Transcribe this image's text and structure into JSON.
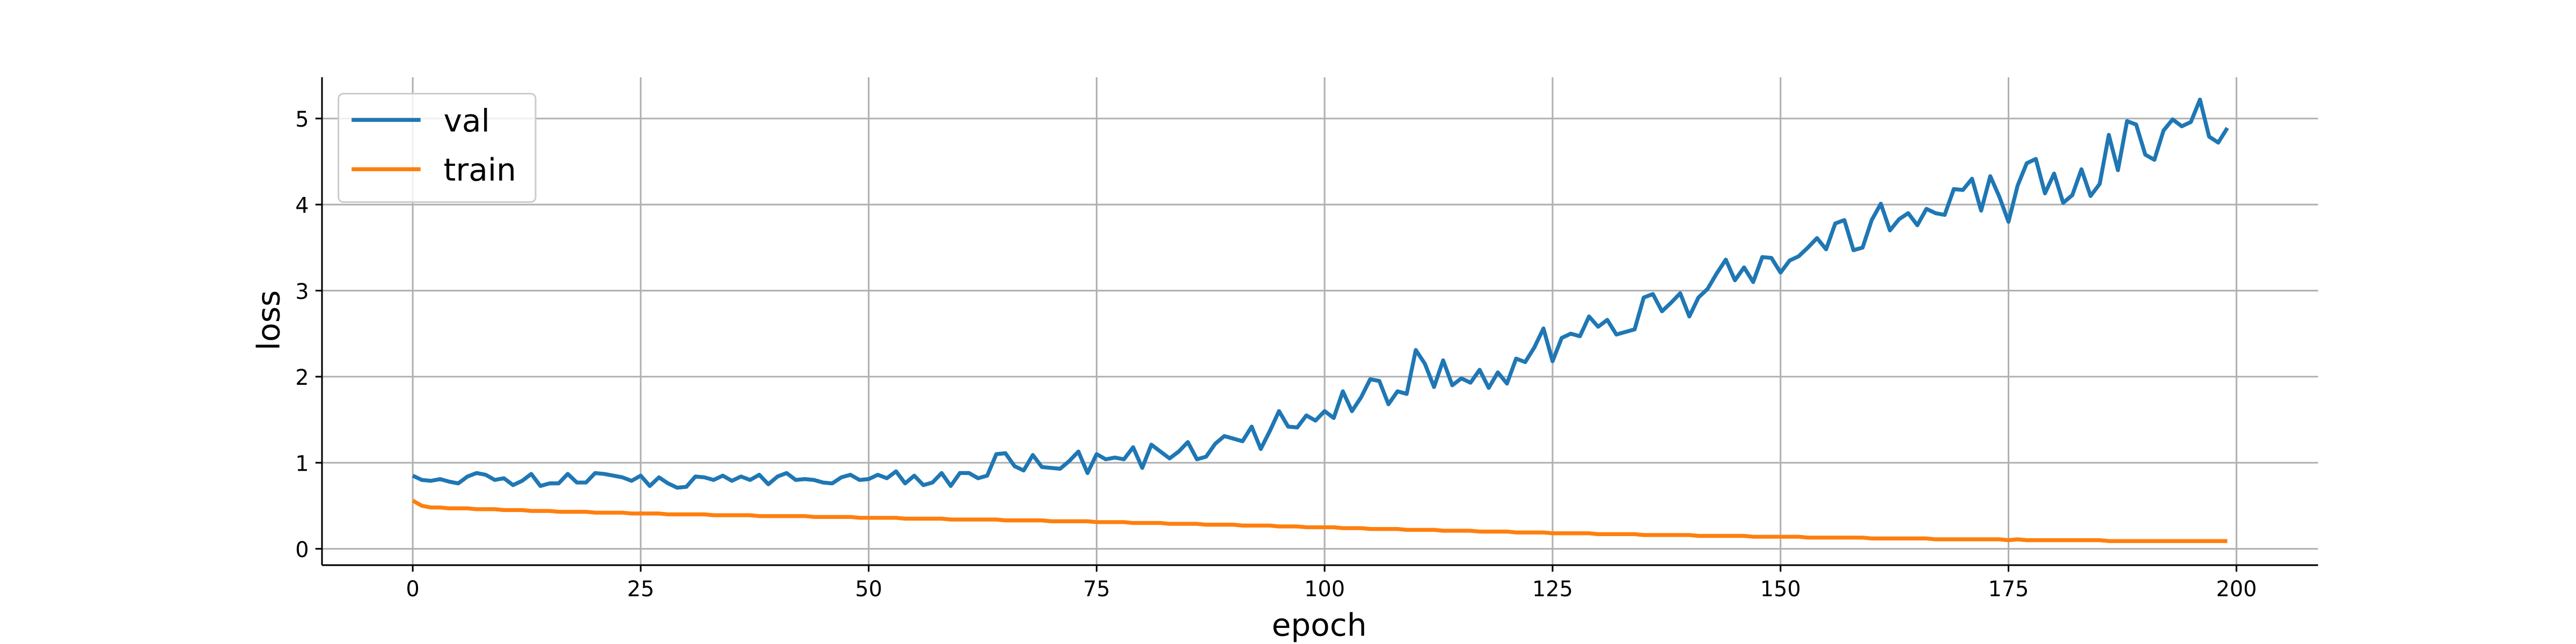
{
  "chart_data": {
    "type": "line",
    "xlabel": "epoch",
    "ylabel": "loss",
    "x": [
      0,
      1,
      2,
      3,
      4,
      5,
      6,
      7,
      8,
      9,
      10,
      11,
      12,
      13,
      14,
      15,
      16,
      17,
      18,
      19,
      20,
      21,
      22,
      23,
      24,
      25,
      26,
      27,
      28,
      29,
      30,
      31,
      32,
      33,
      34,
      35,
      36,
      37,
      38,
      39,
      40,
      41,
      42,
      43,
      44,
      45,
      46,
      47,
      48,
      49,
      50,
      51,
      52,
      53,
      54,
      55,
      56,
      57,
      58,
      59,
      60,
      61,
      62,
      63,
      64,
      65,
      66,
      67,
      68,
      69,
      70,
      71,
      72,
      73,
      74,
      75,
      76,
      77,
      78,
      79,
      80,
      81,
      82,
      83,
      84,
      85,
      86,
      87,
      88,
      89,
      90,
      91,
      92,
      93,
      94,
      95,
      96,
      97,
      98,
      99,
      100,
      101,
      102,
      103,
      104,
      105,
      106,
      107,
      108,
      109,
      110,
      111,
      112,
      113,
      114,
      115,
      116,
      117,
      118,
      119,
      120,
      121,
      122,
      123,
      124,
      125,
      126,
      127,
      128,
      129,
      130,
      131,
      132,
      133,
      134,
      135,
      136,
      137,
      138,
      139,
      140,
      141,
      142,
      143,
      144,
      145,
      146,
      147,
      148,
      149,
      150,
      151,
      152,
      153,
      154,
      155,
      156,
      157,
      158,
      159,
      160,
      161,
      162,
      163,
      164,
      165,
      166,
      167,
      168,
      169,
      170,
      171,
      172,
      173,
      174,
      175,
      176,
      177,
      178,
      179,
      180,
      181,
      182,
      183,
      184,
      185,
      186,
      187,
      188,
      189,
      190,
      191,
      192,
      193,
      194,
      195,
      196,
      197,
      198,
      199
    ],
    "series": [
      {
        "name": "val",
        "color": "#1f77b4",
        "values": [
          0.85,
          0.8,
          0.79,
          0.81,
          0.78,
          0.76,
          0.84,
          0.88,
          0.86,
          0.8,
          0.82,
          0.74,
          0.79,
          0.87,
          0.73,
          0.76,
          0.76,
          0.87,
          0.77,
          0.77,
          0.88,
          0.87,
          0.85,
          0.83,
          0.79,
          0.85,
          0.73,
          0.83,
          0.76,
          0.71,
          0.72,
          0.84,
          0.83,
          0.8,
          0.85,
          0.79,
          0.84,
          0.8,
          0.86,
          0.75,
          0.84,
          0.88,
          0.8,
          0.81,
          0.8,
          0.77,
          0.76,
          0.83,
          0.86,
          0.8,
          0.81,
          0.86,
          0.82,
          0.9,
          0.76,
          0.85,
          0.74,
          0.77,
          0.88,
          0.73,
          0.88,
          0.88,
          0.82,
          0.85,
          1.1,
          1.11,
          0.96,
          0.91,
          1.09,
          0.95,
          0.94,
          0.93,
          1.02,
          1.13,
          0.88,
          1.1,
          1.04,
          1.06,
          1.04,
          1.18,
          0.94,
          1.21,
          1.13,
          1.05,
          1.13,
          1.24,
          1.04,
          1.07,
          1.22,
          1.31,
          1.28,
          1.25,
          1.42,
          1.16,
          1.37,
          1.6,
          1.42,
          1.41,
          1.55,
          1.49,
          1.6,
          1.52,
          1.83,
          1.6,
          1.76,
          1.97,
          1.95,
          1.68,
          1.83,
          1.8,
          2.31,
          2.15,
          1.88,
          2.19,
          1.9,
          1.98,
          1.93,
          2.08,
          1.87,
          2.05,
          1.92,
          2.21,
          2.17,
          2.34,
          2.56,
          2.18,
          2.45,
          2.5,
          2.47,
          2.7,
          2.58,
          2.66,
          2.49,
          2.52,
          2.55,
          2.92,
          2.96,
          2.76,
          2.86,
          2.97,
          2.7,
          2.92,
          3.02,
          3.2,
          3.36,
          3.12,
          3.27,
          3.1,
          3.39,
          3.38,
          3.21,
          3.35,
          3.4,
          3.5,
          3.61,
          3.48,
          3.78,
          3.82,
          3.47,
          3.5,
          3.82,
          4.01,
          3.7,
          3.83,
          3.9,
          3.76,
          3.95,
          3.9,
          3.88,
          4.18,
          4.17,
          4.3,
          3.93,
          4.33,
          4.09,
          3.8,
          4.22,
          4.48,
          4.53,
          4.13,
          4.36,
          4.02,
          4.11,
          4.41,
          4.1,
          4.24,
          4.81,
          4.4,
          4.97,
          4.93,
          4.58,
          4.52,
          4.86,
          4.99,
          4.91,
          4.96,
          5.22,
          4.79,
          4.72,
          4.89
        ]
      },
      {
        "name": "train",
        "color": "#ff7f0e",
        "values": [
          0.56,
          0.5,
          0.48,
          0.48,
          0.47,
          0.47,
          0.47,
          0.46,
          0.46,
          0.46,
          0.45,
          0.45,
          0.45,
          0.44,
          0.44,
          0.44,
          0.43,
          0.43,
          0.43,
          0.43,
          0.42,
          0.42,
          0.42,
          0.42,
          0.41,
          0.41,
          0.41,
          0.41,
          0.4,
          0.4,
          0.4,
          0.4,
          0.4,
          0.39,
          0.39,
          0.39,
          0.39,
          0.39,
          0.38,
          0.38,
          0.38,
          0.38,
          0.38,
          0.38,
          0.37,
          0.37,
          0.37,
          0.37,
          0.37,
          0.36,
          0.36,
          0.36,
          0.36,
          0.36,
          0.35,
          0.35,
          0.35,
          0.35,
          0.35,
          0.34,
          0.34,
          0.34,
          0.34,
          0.34,
          0.34,
          0.33,
          0.33,
          0.33,
          0.33,
          0.33,
          0.32,
          0.32,
          0.32,
          0.32,
          0.32,
          0.31,
          0.31,
          0.31,
          0.31,
          0.3,
          0.3,
          0.3,
          0.3,
          0.29,
          0.29,
          0.29,
          0.29,
          0.28,
          0.28,
          0.28,
          0.28,
          0.27,
          0.27,
          0.27,
          0.27,
          0.26,
          0.26,
          0.26,
          0.25,
          0.25,
          0.25,
          0.25,
          0.24,
          0.24,
          0.24,
          0.23,
          0.23,
          0.23,
          0.23,
          0.22,
          0.22,
          0.22,
          0.22,
          0.21,
          0.21,
          0.21,
          0.21,
          0.2,
          0.2,
          0.2,
          0.2,
          0.19,
          0.19,
          0.19,
          0.19,
          0.18,
          0.18,
          0.18,
          0.18,
          0.18,
          0.17,
          0.17,
          0.17,
          0.17,
          0.17,
          0.16,
          0.16,
          0.16,
          0.16,
          0.16,
          0.16,
          0.15,
          0.15,
          0.15,
          0.15,
          0.15,
          0.15,
          0.14,
          0.14,
          0.14,
          0.14,
          0.14,
          0.14,
          0.13,
          0.13,
          0.13,
          0.13,
          0.13,
          0.13,
          0.13,
          0.12,
          0.12,
          0.12,
          0.12,
          0.12,
          0.12,
          0.12,
          0.11,
          0.11,
          0.11,
          0.11,
          0.11,
          0.11,
          0.11,
          0.11,
          0.1,
          0.11,
          0.1,
          0.1,
          0.1,
          0.1,
          0.1,
          0.1,
          0.1,
          0.1,
          0.1,
          0.09,
          0.09,
          0.09,
          0.09,
          0.09,
          0.09,
          0.09,
          0.09,
          0.09,
          0.09,
          0.09,
          0.09,
          0.09,
          0.09
        ]
      }
    ],
    "xlim": [
      -9.95,
      208.95
    ],
    "ylim": [
      -0.19,
      5.48
    ],
    "xticks": [
      0,
      25,
      50,
      75,
      100,
      125,
      150,
      175,
      200
    ],
    "yticks": [
      0,
      1,
      2,
      3,
      4,
      5
    ],
    "grid": true,
    "legend": "upper left"
  }
}
